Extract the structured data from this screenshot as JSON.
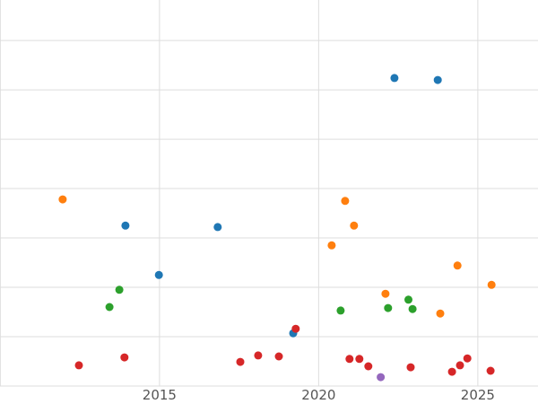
{
  "chart_data": {
    "type": "scatter",
    "title": "",
    "xlabel": "",
    "ylabel": "",
    "x_tick_labels": [
      "2015",
      "2020",
      "2025"
    ],
    "x_ticks": [
      2015,
      2020,
      2025
    ],
    "x_gridlines": [
      2010,
      2015,
      2020,
      2025
    ],
    "y_gridlines": [
      0,
      1,
      2,
      3,
      4,
      5,
      6,
      7
    ],
    "xlim": [
      2009.99,
      2026.89
    ],
    "ylim": [
      0,
      7.82
    ],
    "grid": true,
    "legend": "none",
    "axis_text_color": "#555555",
    "gridline_color": "#dddddd",
    "background_color": "#ffffff",
    "series": [
      {
        "name": "blue",
        "color": "#1f77b4",
        "points": [
          [
            2013.93,
            3.25
          ],
          [
            2014.98,
            2.25
          ],
          [
            2016.83,
            3.22
          ],
          [
            2019.2,
            1.07
          ],
          [
            2022.38,
            6.24
          ],
          [
            2023.74,
            6.2
          ]
        ]
      },
      {
        "name": "orange",
        "color": "#ff7f0e",
        "points": [
          [
            2011.96,
            3.78
          ],
          [
            2020.41,
            2.85
          ],
          [
            2020.83,
            3.75
          ],
          [
            2021.11,
            3.25
          ],
          [
            2022.1,
            1.87
          ],
          [
            2023.82,
            1.47
          ],
          [
            2024.36,
            2.44
          ],
          [
            2025.43,
            2.05
          ]
        ]
      },
      {
        "name": "green",
        "color": "#2ca02c",
        "points": [
          [
            2013.43,
            1.6
          ],
          [
            2013.74,
            1.95
          ],
          [
            2020.69,
            1.53
          ],
          [
            2022.18,
            1.58
          ],
          [
            2022.82,
            1.75
          ],
          [
            2022.95,
            1.56
          ]
        ]
      },
      {
        "name": "red",
        "color": "#d62728",
        "points": [
          [
            2012.47,
            0.42
          ],
          [
            2013.9,
            0.58
          ],
          [
            2017.54,
            0.49
          ],
          [
            2018.1,
            0.62
          ],
          [
            2018.75,
            0.6
          ],
          [
            2019.28,
            1.16
          ],
          [
            2020.97,
            0.55
          ],
          [
            2021.28,
            0.55
          ],
          [
            2021.56,
            0.4
          ],
          [
            2022.89,
            0.38
          ],
          [
            2024.19,
            0.29
          ],
          [
            2024.44,
            0.42
          ],
          [
            2024.67,
            0.56
          ],
          [
            2025.4,
            0.31
          ]
        ]
      },
      {
        "name": "purple",
        "color": "#9467bd",
        "points": [
          [
            2021.95,
            0.18
          ]
        ]
      }
    ]
  }
}
